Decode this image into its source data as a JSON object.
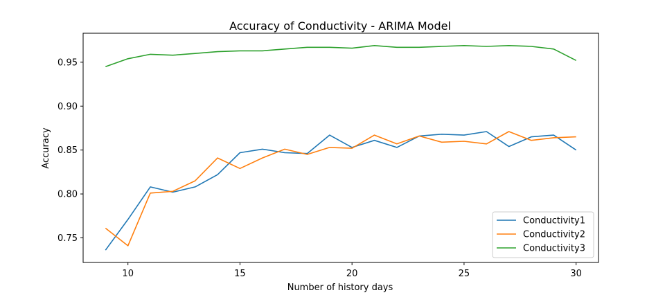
{
  "chart_data": {
    "type": "line",
    "title": "Accuracy of Conductivity - ARIMA Model",
    "xlabel": "Number of history days",
    "ylabel": "Accuracy",
    "x": [
      9,
      10,
      11,
      12,
      13,
      14,
      15,
      16,
      17,
      18,
      19,
      20,
      21,
      22,
      23,
      24,
      25,
      26,
      27,
      28,
      29,
      30
    ],
    "xlim": [
      8,
      31
    ],
    "ylim": [
      0.722,
      0.983
    ],
    "xticks": [
      10,
      15,
      20,
      25,
      30
    ],
    "yticks": [
      0.75,
      0.8,
      0.85,
      0.9,
      0.95
    ],
    "ytick_labels": [
      "0.75",
      "0.80",
      "0.85",
      "0.90",
      "0.95"
    ],
    "grid": false,
    "legend_position": "lower-right",
    "series": [
      {
        "name": "Conductivity1",
        "color": "#1f77b4",
        "values": [
          0.736,
          0.771,
          0.808,
          0.802,
          0.808,
          0.822,
          0.847,
          0.851,
          0.847,
          0.846,
          0.867,
          0.853,
          0.861,
          0.853,
          0.866,
          0.868,
          0.867,
          0.871,
          0.854,
          0.865,
          0.867,
          0.85
        ]
      },
      {
        "name": "Conductivity2",
        "color": "#ff7f0e",
        "values": [
          0.761,
          0.741,
          0.801,
          0.803,
          0.815,
          0.841,
          0.829,
          0.841,
          0.851,
          0.845,
          0.853,
          0.852,
          0.867,
          0.857,
          0.866,
          0.859,
          0.86,
          0.857,
          0.871,
          0.861,
          0.864,
          0.865
        ]
      },
      {
        "name": "Conductivity3",
        "color": "#2ca02c",
        "values": [
          0.945,
          0.954,
          0.959,
          0.958,
          0.96,
          0.962,
          0.963,
          0.963,
          0.965,
          0.967,
          0.967,
          0.966,
          0.969,
          0.967,
          0.967,
          0.968,
          0.969,
          0.968,
          0.969,
          0.968,
          0.965,
          0.952
        ]
      }
    ]
  }
}
